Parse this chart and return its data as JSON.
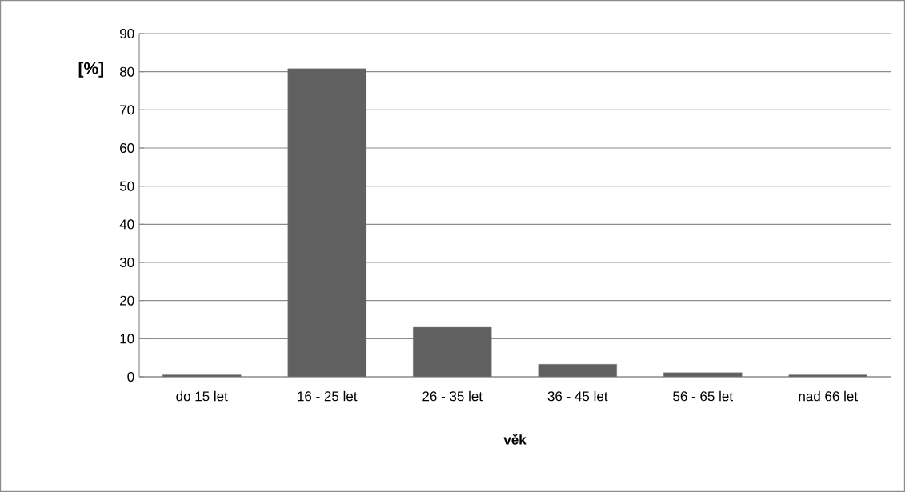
{
  "chart_data": {
    "type": "bar",
    "categories": [
      "do 15 let",
      "16 - 25 let",
      "26 - 35 let",
      "36 - 45 let",
      "56 - 65 let",
      "nad 66 let"
    ],
    "values": [
      0.5,
      80.8,
      13.0,
      3.3,
      1.1,
      0.5
    ],
    "color": "#606060",
    "xlabel": "věk",
    "ylabel": "[%]",
    "ylim": [
      0,
      90
    ],
    "yticks": [
      0,
      10,
      20,
      30,
      40,
      50,
      60,
      70,
      80,
      90
    ],
    "grid": "y"
  }
}
